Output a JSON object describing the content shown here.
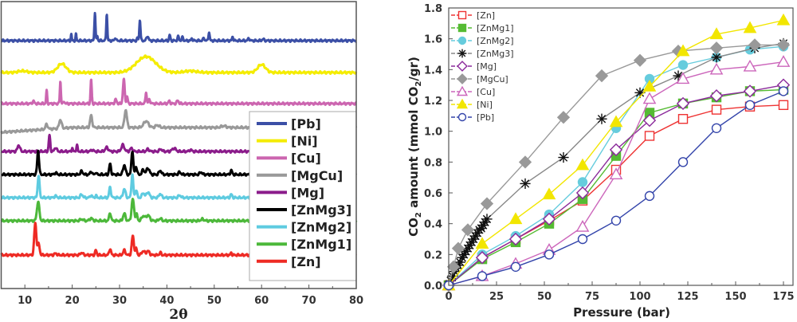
{
  "chart_data": [
    {
      "type": "line",
      "title": "",
      "xlabel": "2θ",
      "ylabel": "",
      "xlim": [
        5,
        80
      ],
      "ylim": [
        0,
        360
      ],
      "xticks": [
        "10",
        "20",
        "30",
        "40",
        "50",
        "60",
        "70",
        "80"
      ],
      "legend_position": "bottom-right",
      "series": [
        {
          "name": "[Pb]",
          "color": "#3b4fa6",
          "offset": 311,
          "peaks": [
            [
              19.8,
              8,
              0.15
            ],
            [
              20.8,
              8,
              0.15
            ],
            [
              24.8,
              36,
              0.18
            ],
            [
              25.3,
              6,
              0.15
            ],
            [
              27.3,
              34,
              0.18
            ],
            [
              29.1,
              4,
              0.2
            ],
            [
              33.8,
              3,
              0.2
            ],
            [
              34.3,
              26,
              0.2
            ],
            [
              35.9,
              6,
              0.3
            ],
            [
              40.6,
              7,
              0.2
            ],
            [
              42.4,
              5,
              0.25
            ],
            [
              43.3,
              4,
              0.25
            ],
            [
              45.3,
              3,
              0.2
            ],
            [
              47.8,
              4,
              0.2
            ],
            [
              48.9,
              11,
              0.2
            ],
            [
              53.9,
              5,
              0.2
            ],
            [
              57.3,
              3,
              0.25
            ],
            [
              60.3,
              2,
              0.3
            ]
          ]
        },
        {
          "name": "[Ni]",
          "color": "#f4ec00",
          "offset": 271,
          "peaks": [
            [
              9.5,
              2,
              1.5
            ],
            [
              17.8,
              11,
              1.4
            ],
            [
              35.6,
              20,
              3.2
            ],
            [
              45,
              2,
              2
            ],
            [
              60,
              10,
              1.3
            ]
          ]
        },
        {
          "name": "[Cu]",
          "color": "#cc66b0",
          "offset": 232,
          "peaks": [
            [
              11.8,
              3,
              0.3
            ],
            [
              14.6,
              16,
              0.18
            ],
            [
              17.5,
              28,
              0.18
            ],
            [
              18.3,
              3,
              0.2
            ],
            [
              24,
              30,
              0.2
            ],
            [
              29.2,
              5,
              0.3
            ],
            [
              30.9,
              30,
              0.3
            ],
            [
              31.6,
              9,
              0.2
            ],
            [
              35.6,
              15,
              0.2
            ],
            [
              36.3,
              5,
              0.3
            ],
            [
              40.5,
              3,
              0.3
            ],
            [
              42.3,
              4,
              0.3
            ]
          ]
        },
        {
          "name": "[MgCu]",
          "color": "#999999",
          "offset": 202,
          "slope": [
            [
              5,
              -6
            ],
            [
              20,
              0
            ]
          ],
          "peaks": [
            [
              14.6,
              6,
              0.4
            ],
            [
              17.5,
              11,
              0.4
            ],
            [
              24,
              15,
              0.35
            ],
            [
              31.3,
              22,
              0.4
            ],
            [
              35.6,
              8,
              0.8
            ],
            [
              38,
              3,
              0.6
            ],
            [
              52,
              2,
              0.8
            ]
          ]
        },
        {
          "name": "[Mg]",
          "color": "#8b1c8b",
          "offset": 172,
          "peaks": [
            [
              8.7,
              8,
              0.4
            ],
            [
              15.2,
              20,
              0.25
            ],
            [
              16.5,
              5,
              0.35
            ],
            [
              20,
              5,
              0.15
            ],
            [
              21,
              8,
              0.2
            ],
            [
              24.2,
              2,
              0.4
            ],
            [
              27.3,
              5,
              0.5
            ],
            [
              30.7,
              8,
              0.5
            ],
            [
              32.5,
              4,
              0.4
            ],
            [
              36,
              3,
              0.4
            ],
            [
              38.7,
              3,
              0.4
            ],
            [
              41.5,
              4,
              0.6
            ],
            [
              45,
              2,
              0.4
            ]
          ]
        },
        {
          "name": "[ZnMg3]",
          "color": "#000000",
          "offset": 143,
          "peaks": [
            [
              12.8,
              30,
              0.3
            ],
            [
              16.5,
              2,
              0.4
            ],
            [
              22,
              4,
              0.4
            ],
            [
              24,
              4,
              0.3
            ],
            [
              25,
              3,
              0.2
            ],
            [
              28,
              13,
              0.3
            ],
            [
              31,
              12,
              0.4
            ],
            [
              32.7,
              30,
              0.3
            ],
            [
              33.5,
              10,
              0.3
            ],
            [
              35,
              6,
              0.4
            ],
            [
              36,
              8,
              0.5
            ],
            [
              38.6,
              5,
              0.4
            ],
            [
              42.7,
              3,
              0.4
            ],
            [
              47.2,
              3,
              0.4
            ],
            [
              53.6,
              5,
              0.3
            ]
          ]
        },
        {
          "name": "[ZnMg2]",
          "color": "#5ecbe0",
          "offset": 114,
          "peaks": [
            [
              12.9,
              28,
              0.3
            ],
            [
              16.5,
              2,
              0.4
            ],
            [
              22,
              4,
              0.4
            ],
            [
              24,
              3,
              0.3
            ],
            [
              25,
              3,
              0.2
            ],
            [
              28,
              13,
              0.3
            ],
            [
              31,
              11,
              0.4
            ],
            [
              32.7,
              29,
              0.3
            ],
            [
              33.5,
              10,
              0.3
            ],
            [
              35,
              6,
              0.4
            ],
            [
              36,
              7,
              0.5
            ],
            [
              38.6,
              5,
              0.4
            ],
            [
              42.7,
              3,
              0.4
            ],
            [
              53.6,
              4,
              0.3
            ]
          ]
        },
        {
          "name": "[ZnMg1]",
          "color": "#4cb83a",
          "offset": 85,
          "peaks": [
            [
              12.8,
              24,
              0.4
            ],
            [
              22,
              2,
              0.5
            ],
            [
              24,
              3,
              0.5
            ],
            [
              28,
              10,
              0.3
            ],
            [
              31,
              9,
              0.4
            ],
            [
              32.8,
              27,
              0.4
            ],
            [
              33.6,
              8,
              0.3
            ],
            [
              35,
              6,
              0.5
            ],
            [
              36,
              7,
              0.6
            ],
            [
              38.6,
              3,
              0.4
            ],
            [
              47.5,
              2,
              0.5
            ]
          ]
        },
        {
          "name": "[Zn]",
          "color": "#ee2a24",
          "offset": 42,
          "peaks": [
            [
              12.2,
              40,
              0.35
            ],
            [
              12.9,
              14,
              0.35
            ],
            [
              16.5,
              2,
              0.4
            ],
            [
              22,
              3,
              0.4
            ],
            [
              25,
              6,
              0.25
            ],
            [
              28,
              8,
              0.3
            ],
            [
              31,
              6,
              0.4
            ],
            [
              32.8,
              24,
              0.35
            ],
            [
              33.5,
              8,
              0.3
            ],
            [
              35,
              5,
              0.5
            ],
            [
              36,
              5,
              0.5
            ],
            [
              38.6,
              3,
              0.3
            ],
            [
              53.6,
              3,
              0.2
            ]
          ]
        }
      ]
    },
    {
      "type": "line",
      "title": "",
      "xlabel": "Pressure (bar)",
      "ylabel_parts": [
        "CO",
        "2",
        " amount (mmol CO",
        "2",
        "/gr)"
      ],
      "xlim": [
        0,
        180
      ],
      "ylim": [
        0,
        1.8
      ],
      "xticks": [
        "0",
        "25",
        "50",
        "75",
        "100",
        "125",
        "150",
        "175"
      ],
      "yticks": [
        "0.0",
        "0.2",
        "0.4",
        "0.6",
        "0.8",
        "1.0",
        "1.2",
        "1.4",
        "1.6",
        "1.8"
      ],
      "legend_position": "top-left",
      "series": [
        {
          "name": "[Zn]",
          "color": "#ee3333",
          "marker": "square-open",
          "x": [
            0,
            17.5,
            35,
            52.5,
            70,
            87.5,
            105,
            122.5,
            140,
            157.5,
            175
          ],
          "y": [
            0,
            0.18,
            0.3,
            0.42,
            0.55,
            0.75,
            0.97,
            1.08,
            1.14,
            1.16,
            1.17
          ]
        },
        {
          "name": "[ZnMg1]",
          "color": "#55bb33",
          "marker": "square-filled",
          "x": [
            0,
            17.5,
            35,
            52.5,
            70,
            87.5,
            105,
            122.5,
            140,
            157.5,
            175
          ],
          "y": [
            0,
            0.17,
            0.28,
            0.4,
            0.56,
            0.84,
            1.12,
            1.18,
            1.22,
            1.26,
            1.27
          ]
        },
        {
          "name": "[ZnMg2]",
          "color": "#66ccdd",
          "marker": "circle-filled",
          "x": [
            0,
            17.5,
            35,
            52.5,
            70,
            87.5,
            105,
            122.5,
            140,
            157.5,
            175
          ],
          "y": [
            0,
            0.2,
            0.32,
            0.46,
            0.67,
            1.02,
            1.34,
            1.43,
            1.48,
            1.53,
            1.55
          ]
        },
        {
          "name": "[ZnMg3]",
          "color": "#111111",
          "line_color": "#888888",
          "marker": "asterisk",
          "x": [
            0,
            1,
            2,
            3,
            4,
            5,
            6,
            7,
            8,
            9,
            10,
            11,
            12,
            13,
            14,
            15,
            16,
            17,
            18,
            19,
            20,
            40,
            60,
            80,
            100,
            120,
            140,
            160,
            175
          ],
          "y": [
            0,
            0.03,
            0.06,
            0.09,
            0.11,
            0.13,
            0.15,
            0.18,
            0.2,
            0.22,
            0.24,
            0.26,
            0.28,
            0.3,
            0.32,
            0.34,
            0.36,
            0.37,
            0.39,
            0.41,
            0.43,
            0.66,
            0.83,
            1.08,
            1.25,
            1.36,
            1.48,
            1.54,
            1.57
          ]
        },
        {
          "name": "[Mg]",
          "color": "#8b2a9b",
          "marker": "diamond-open",
          "x": [
            0,
            17.5,
            35,
            52.5,
            70,
            87.5,
            105,
            122.5,
            140,
            157.5,
            175
          ],
          "y": [
            0,
            0.18,
            0.3,
            0.43,
            0.6,
            0.88,
            1.07,
            1.18,
            1.23,
            1.26,
            1.3
          ]
        },
        {
          "name": "[MgCu]",
          "color": "#999999",
          "marker": "diamond-filled",
          "x": [
            0,
            2.5,
            5,
            10,
            20,
            40,
            60,
            80,
            100,
            120,
            140,
            160,
            175
          ],
          "y": [
            0,
            0.12,
            0.24,
            0.36,
            0.53,
            0.8,
            1.09,
            1.36,
            1.46,
            1.52,
            1.54,
            1.56,
            1.56
          ]
        },
        {
          "name": "[Cu]",
          "color": "#cc66bb",
          "marker": "triangle-open",
          "x": [
            0,
            17.5,
            35,
            52.5,
            70,
            87.5,
            105,
            122.5,
            140,
            157.5,
            175
          ],
          "y": [
            0,
            0.06,
            0.14,
            0.23,
            0.38,
            0.72,
            1.21,
            1.34,
            1.4,
            1.42,
            1.45
          ]
        },
        {
          "name": "[Ni]",
          "color": "#f2e600",
          "marker": "triangle-filled",
          "x": [
            0,
            17.5,
            35,
            52.5,
            70,
            87.5,
            105,
            122.5,
            140,
            157.5,
            175
          ],
          "y": [
            0,
            0.27,
            0.43,
            0.59,
            0.78,
            1.06,
            1.29,
            1.52,
            1.63,
            1.67,
            1.72
          ]
        },
        {
          "name": "[Pb]",
          "color": "#3344aa",
          "marker": "circle-open",
          "x": [
            0,
            17.5,
            35,
            52.5,
            70,
            87.5,
            105,
            122.5,
            140,
            157.5,
            175
          ],
          "y": [
            0,
            0.06,
            0.12,
            0.2,
            0.3,
            0.42,
            0.58,
            0.8,
            1.02,
            1.17,
            1.26
          ]
        }
      ]
    }
  ]
}
